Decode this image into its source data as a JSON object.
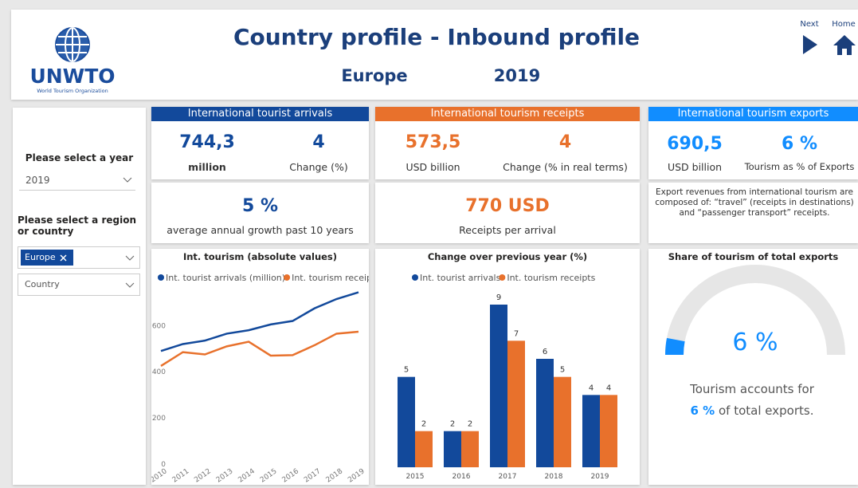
{
  "header": {
    "logo": {
      "name": "UNWTO",
      "subtitle": "World Tourism Organization"
    },
    "title": "Country profile - Inbound profile",
    "region": "Europe",
    "year": "2019",
    "nav": [
      "Next",
      "Home"
    ]
  },
  "filters": {
    "year_label": "Please select a year",
    "year_value": "2019",
    "region_label": "Please select a region or country",
    "region_value": "Europe",
    "country_placeholder": "Country"
  },
  "cards": [
    {
      "header": "International tourist arrivals",
      "metrics": [
        {
          "value": "744,3",
          "label": "million"
        },
        {
          "value": "4",
          "label": "Change (%)"
        }
      ],
      "sub": {
        "value": "5 %",
        "label": "average annual growth past 10 years"
      }
    },
    {
      "header": "International tourism receipts",
      "metrics": [
        {
          "value": "573,5",
          "label": "USD billion"
        },
        {
          "value": "4",
          "label": "Change (% in real terms)"
        }
      ],
      "sub": {
        "value": "770 USD",
        "label": "Receipts per arrival"
      }
    },
    {
      "header": "International tourism exports",
      "metrics": [
        {
          "value": "690,5",
          "label": "USD billion"
        },
        {
          "value": "6 %",
          "label": "Tourism as % of Exports"
        }
      ],
      "note": "Export revenues from international tourism are composed of: “travel” (receipts in destinations) and “passenger transport” receipts."
    }
  ],
  "chart_data": [
    {
      "type": "line",
      "title": "Int. tourism (absolute values)",
      "categories": [
        "2010",
        "2011",
        "2012",
        "2013",
        "2014",
        "2015",
        "2016",
        "2017",
        "2018",
        "2019"
      ],
      "series": [
        {
          "name": "Int. tourist arrivals (million)",
          "color": "#12499b",
          "values": [
            490,
            520,
            535,
            565,
            580,
            605,
            620,
            675,
            715,
            744.3
          ]
        },
        {
          "name": "Int. tourism receip...",
          "color": "#e8712c",
          "values": [
            425,
            485,
            475,
            510,
            530,
            470,
            472,
            515,
            565,
            573.5
          ]
        }
      ],
      "ylim": [
        0,
        760
      ],
      "yticks": [
        0,
        200,
        400,
        600
      ]
    },
    {
      "type": "bar",
      "title": "Change over previous year (%)",
      "categories": [
        "2015",
        "2016",
        "2017",
        "2018",
        "2019"
      ],
      "series": [
        {
          "name": "Int. tourist arrivals",
          "color": "#12499b",
          "values": [
            5,
            2,
            9,
            6,
            4
          ]
        },
        {
          "name": "Int. tourism receipts",
          "color": "#e8712c",
          "values": [
            2,
            2,
            7,
            5,
            4
          ]
        }
      ]
    },
    {
      "type": "gauge",
      "title": "Share of tourism of total exports",
      "value": 6,
      "value_label": "6 %",
      "ylim": [
        0,
        100
      ],
      "color": "#118dff",
      "track_color": "#e6e6e6",
      "caption": [
        "Tourism accounts for",
        "6 %",
        "of total exports."
      ]
    }
  ]
}
